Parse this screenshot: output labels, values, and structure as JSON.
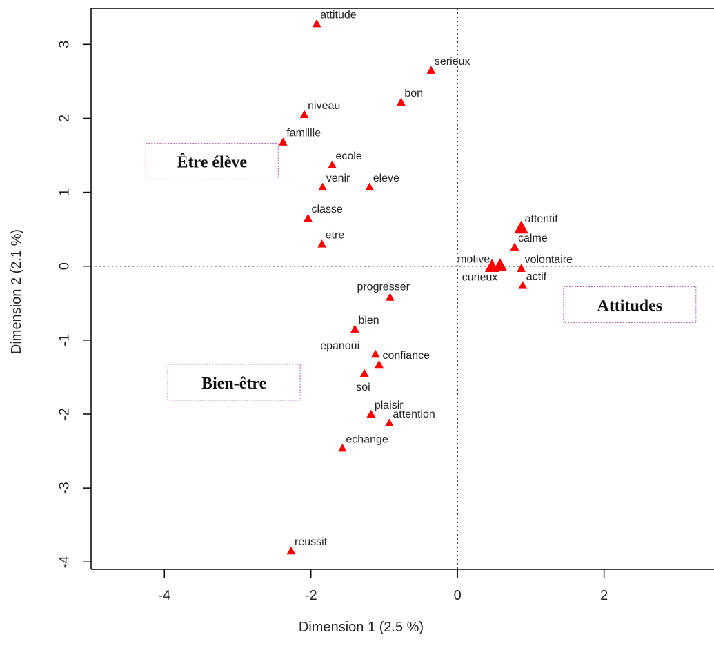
{
  "chart_data": {
    "type": "scatter",
    "xlabel": "Dimension 1 (2.5 %)",
    "ylabel": "Dimension 2 (2.1 %)",
    "xlim": [
      -5,
      3.5
    ],
    "ylim": [
      -4.1,
      3.6
    ],
    "x_ticks": [
      -4,
      -2,
      0,
      2
    ],
    "y_ticks": [
      -4,
      -3,
      -2,
      -1,
      0,
      1,
      2,
      3
    ],
    "x_tick_labels": [
      "-4",
      "-2",
      "0",
      "2"
    ],
    "y_tick_labels": [
      "-4",
      "-3",
      "-2",
      "-1",
      "0",
      "1",
      "2",
      "3"
    ],
    "reference_lines": {
      "x": 0,
      "y": 0,
      "style": "dotted"
    },
    "marker": {
      "shape": "triangle",
      "color": "#ff0000"
    },
    "points": [
      {
        "label": "attitude",
        "x": -1.92,
        "y": 3.28
      },
      {
        "label": "serieux",
        "x": -0.36,
        "y": 2.65
      },
      {
        "label": "bon",
        "x": -0.77,
        "y": 2.22
      },
      {
        "label": "niveau",
        "x": -2.09,
        "y": 2.05
      },
      {
        "label": "famillle",
        "x": -2.38,
        "y": 1.68
      },
      {
        "label": "ecole",
        "x": -1.71,
        "y": 1.37
      },
      {
        "label": "venir",
        "x": -1.84,
        "y": 1.07
      },
      {
        "label": "eleve",
        "x": -1.2,
        "y": 1.07
      },
      {
        "label": "classe",
        "x": -2.04,
        "y": 0.65
      },
      {
        "label": "etre",
        "x": -1.85,
        "y": 0.3
      },
      {
        "label": "attentif",
        "x": 0.87,
        "y": 0.52
      },
      {
        "label": "calme",
        "x": 0.78,
        "y": 0.26
      },
      {
        "label": "motive",
        "x": 0.47,
        "y": 0.0
      },
      {
        "label": "curieux",
        "x": 0.58,
        "y": 0.01
      },
      {
        "label": "volontaire",
        "x": 0.87,
        "y": -0.03
      },
      {
        "label": "actif",
        "x": 0.89,
        "y": -0.26
      },
      {
        "label": "progresser",
        "x": -0.92,
        "y": -0.42
      },
      {
        "label": "bien",
        "x": -1.4,
        "y": -0.85
      },
      {
        "label": "epanoui",
        "x": -1.12,
        "y": -1.19
      },
      {
        "label": "confiance",
        "x": -1.07,
        "y": -1.33
      },
      {
        "label": "soi",
        "x": -1.27,
        "y": -1.45
      },
      {
        "label": "plaisir",
        "x": -1.18,
        "y": -2.0
      },
      {
        "label": "attention",
        "x": -0.93,
        "y": -2.12
      },
      {
        "label": "echange",
        "x": -1.57,
        "y": -2.46
      },
      {
        "label": "reussit",
        "x": -2.27,
        "y": -3.85
      }
    ],
    "annotations": [
      {
        "text": "Être élève",
        "x": -3.35,
        "y": 1.42
      },
      {
        "text": "Attitudes",
        "x": 2.35,
        "y": -0.52
      },
      {
        "text": "Bien-être",
        "x": -3.05,
        "y": -1.57
      }
    ]
  }
}
